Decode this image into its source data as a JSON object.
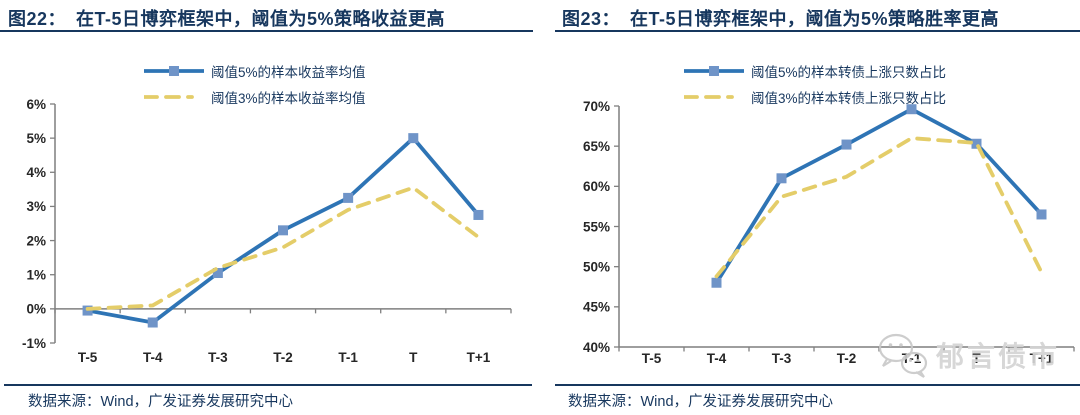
{
  "colors": {
    "navy": "#17375e",
    "axis": "#7f7f7f",
    "tick_text": "#262626",
    "blue_line": "#2E74B5",
    "blue_marker": "#6F94C8",
    "yellow_dashed": "#E4CD69",
    "watermark_gray": "#c9c9c9"
  },
  "figures": [
    {
      "number": "图22：",
      "title": "在T-5日博弈框架中，阈值为5%策略收益更高",
      "source": "数据来源：Wind，广发证券发展研究中心"
    },
    {
      "number": "图23：",
      "title": "在T-5日博弈框架中，阈值为5%策略胜率更高",
      "source": "数据来源：Wind，广发证券发展研究中心"
    }
  ],
  "watermark": {
    "text": "郁言债市",
    "icon": "wechat-icon"
  },
  "chart_data": [
    {
      "type": "line",
      "title": "图22：在T-5日博弈框架中，阈值为5%策略收益更高",
      "categories": [
        "T-5",
        "T-4",
        "T-3",
        "T-2",
        "T-1",
        "T",
        "T+1"
      ],
      "series": [
        {
          "name": "阈值5%的样本收益率均值",
          "style": "solid",
          "color": "#2E74B5",
          "marker": "square",
          "marker_color": "#6F94C8",
          "values": [
            -0.05,
            -0.4,
            1.05,
            2.3,
            3.25,
            5.0,
            2.75
          ]
        },
        {
          "name": "阈值3%的样本收益率均值",
          "style": "dashed",
          "color": "#E4CD69",
          "marker": "none",
          "values": [
            0.0,
            0.1,
            1.2,
            1.8,
            2.9,
            3.55,
            2.1
          ]
        }
      ],
      "xlabel": "",
      "ylabel": "",
      "ylim": [
        -1,
        6
      ],
      "ystep": 1,
      "y_tick_labels": [
        "6%",
        "5%",
        "4%",
        "3%",
        "2%",
        "1%",
        "0%",
        "-1%"
      ],
      "yfmt": "percent",
      "grid": false,
      "legend_position": "top",
      "category_axis_at": 0
    },
    {
      "type": "line",
      "title": "图23：在T-5日博弈框架中，阈值为5%策略胜率更高",
      "categories": [
        "T-5",
        "T-4",
        "T-3",
        "T-2",
        "T-1",
        "T",
        "T+1"
      ],
      "series": [
        {
          "name": "阈值5%的样本转债上涨只数占比",
          "style": "solid",
          "color": "#2E74B5",
          "marker": "square",
          "marker_color": "#6F94C8",
          "values": [
            null,
            48.0,
            61.0,
            65.2,
            69.6,
            65.3,
            56.5
          ]
        },
        {
          "name": "阈值3%的样本转债上涨只数占比",
          "style": "dashed",
          "color": "#E4CD69",
          "marker": "none",
          "values": [
            null,
            48.8,
            58.7,
            61.2,
            66.0,
            65.4,
            49.3
          ]
        }
      ],
      "xlabel": "",
      "ylabel": "",
      "ylim": [
        40,
        70
      ],
      "ystep": 5,
      "y_tick_labels": [
        "70%",
        "65%",
        "60%",
        "55%",
        "50%",
        "45%",
        "40%"
      ],
      "yfmt": "percent",
      "grid": false,
      "legend_position": "top",
      "category_axis_at": 40
    }
  ]
}
